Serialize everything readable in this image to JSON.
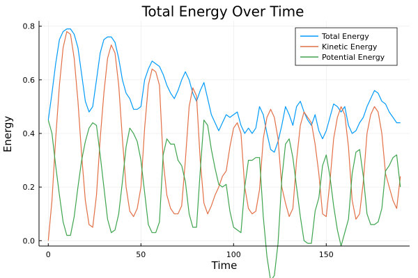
{
  "chart_data": {
    "type": "line",
    "title": "Total Energy Over Time",
    "xlabel": "Time",
    "ylabel": "Energy",
    "xlim": [
      -5,
      195
    ],
    "ylim": [
      -0.02,
      0.82
    ],
    "xticks": [
      0,
      50,
      100,
      150
    ],
    "yticks": [
      0.0,
      0.2,
      0.4,
      0.6,
      0.8
    ],
    "xtick_labels": [
      "0",
      "50",
      "100",
      "150"
    ],
    "ytick_labels": [
      "0.0",
      "0.2",
      "0.4",
      "0.6",
      "0.8"
    ],
    "grid": true,
    "legend_position": "top-right",
    "x": [
      0,
      2,
      4,
      6,
      8,
      10,
      12,
      14,
      16,
      18,
      20,
      22,
      24,
      26,
      28,
      30,
      32,
      34,
      36,
      38,
      40,
      42,
      44,
      46,
      48,
      50,
      52,
      54,
      56,
      58,
      60,
      62,
      64,
      66,
      68,
      70,
      72,
      74,
      76,
      78,
      80,
      82,
      84,
      86,
      88,
      90,
      92,
      94,
      96,
      98,
      100,
      102,
      104,
      106,
      108,
      110,
      112,
      114,
      116,
      118,
      120,
      122,
      124,
      126,
      128,
      130,
      132,
      134,
      136,
      138,
      140,
      142,
      144,
      146,
      148,
      150,
      152,
      154,
      156,
      158,
      160,
      162,
      164,
      166,
      168,
      170,
      172,
      174,
      176,
      178,
      180,
      182,
      184,
      186,
      188,
      190
    ],
    "series": [
      {
        "name": "Total Energy",
        "color": "#009af9",
        "values": [
          0.45,
          0.55,
          0.66,
          0.75,
          0.78,
          0.79,
          0.79,
          0.77,
          0.72,
          0.62,
          0.52,
          0.48,
          0.5,
          0.6,
          0.7,
          0.75,
          0.76,
          0.76,
          0.74,
          0.68,
          0.6,
          0.55,
          0.53,
          0.49,
          0.49,
          0.5,
          0.6,
          0.64,
          0.67,
          0.66,
          0.65,
          0.62,
          0.58,
          0.55,
          0.53,
          0.56,
          0.6,
          0.63,
          0.6,
          0.55,
          0.52,
          0.56,
          0.59,
          0.53,
          0.47,
          0.44,
          0.41,
          0.44,
          0.47,
          0.46,
          0.47,
          0.48,
          0.43,
          0.4,
          0.42,
          0.4,
          0.42,
          0.5,
          0.47,
          0.4,
          0.34,
          0.33,
          0.37,
          0.43,
          0.5,
          0.47,
          0.43,
          0.5,
          0.52,
          0.48,
          0.45,
          0.43,
          0.47,
          0.41,
          0.38,
          0.41,
          0.46,
          0.51,
          0.5,
          0.48,
          0.5,
          0.43,
          0.4,
          0.41,
          0.44,
          0.46,
          0.5,
          0.53,
          0.56,
          0.55,
          0.52,
          0.51,
          0.48,
          0.46,
          0.44,
          0.44
        ]
      },
      {
        "name": "Kinetic Energy",
        "color": "#e26f46",
        "values": [
          0.0,
          0.15,
          0.38,
          0.58,
          0.72,
          0.78,
          0.77,
          0.68,
          0.52,
          0.32,
          0.15,
          0.06,
          0.05,
          0.17,
          0.38,
          0.55,
          0.68,
          0.73,
          0.7,
          0.58,
          0.38,
          0.2,
          0.11,
          0.09,
          0.12,
          0.2,
          0.42,
          0.58,
          0.64,
          0.63,
          0.58,
          0.3,
          0.17,
          0.12,
          0.1,
          0.1,
          0.13,
          0.3,
          0.5,
          0.57,
          0.54,
          0.3,
          0.14,
          0.1,
          0.13,
          0.17,
          0.2,
          0.24,
          0.26,
          0.35,
          0.42,
          0.44,
          0.4,
          0.2,
          0.12,
          0.1,
          0.11,
          0.19,
          0.38,
          0.46,
          0.49,
          0.46,
          0.38,
          0.2,
          0.14,
          0.09,
          0.12,
          0.3,
          0.43,
          0.48,
          0.46,
          0.44,
          0.36,
          0.25,
          0.1,
          0.09,
          0.22,
          0.38,
          0.46,
          0.5,
          0.47,
          0.35,
          0.15,
          0.08,
          0.1,
          0.22,
          0.4,
          0.47,
          0.5,
          0.48,
          0.4,
          0.25,
          0.2,
          0.15,
          0.12,
          0.24
        ]
      },
      {
        "name": "Potential Energy",
        "color": "#3da44d",
        "values": [
          0.45,
          0.4,
          0.28,
          0.17,
          0.07,
          0.02,
          0.02,
          0.09,
          0.2,
          0.3,
          0.37,
          0.42,
          0.44,
          0.43,
          0.32,
          0.2,
          0.08,
          0.03,
          0.04,
          0.1,
          0.22,
          0.35,
          0.42,
          0.4,
          0.37,
          0.3,
          0.18,
          0.06,
          0.03,
          0.03,
          0.07,
          0.32,
          0.38,
          0.36,
          0.36,
          0.3,
          0.28,
          0.22,
          0.1,
          0.05,
          0.05,
          0.26,
          0.45,
          0.43,
          0.34,
          0.27,
          0.21,
          0.2,
          0.21,
          0.11,
          0.05,
          0.04,
          0.03,
          0.2,
          0.3,
          0.3,
          0.31,
          0.31,
          0.09,
          -0.06,
          -0.15,
          -0.13,
          -0.01,
          0.23,
          0.36,
          0.38,
          0.31,
          0.2,
          0.09,
          0.0,
          -0.01,
          -0.01,
          0.11,
          0.16,
          0.28,
          0.32,
          0.24,
          0.13,
          0.04,
          -0.02,
          0.03,
          0.08,
          0.25,
          0.33,
          0.34,
          0.24,
          0.1,
          0.06,
          0.06,
          0.07,
          0.12,
          0.26,
          0.28,
          0.31,
          0.32,
          0.2
        ]
      }
    ]
  }
}
